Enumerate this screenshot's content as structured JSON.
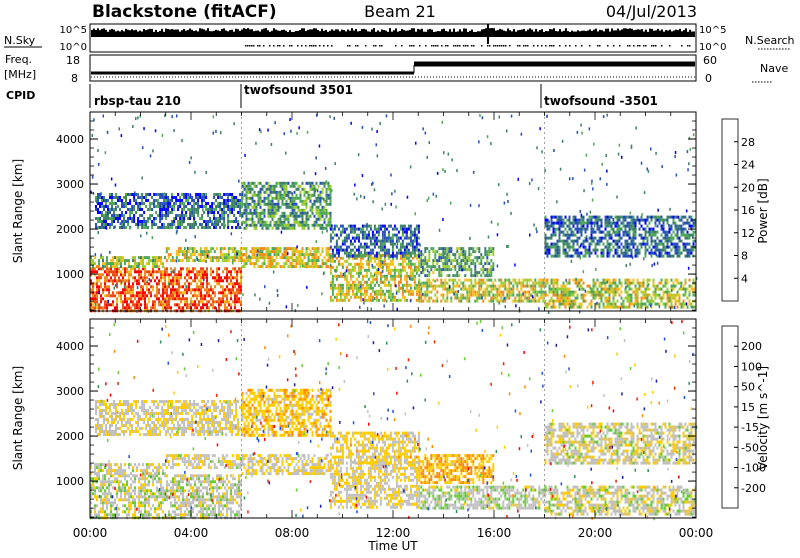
{
  "header": {
    "station": "Blackstone (fitACF)",
    "beam": "Beam 21",
    "date": "04/Jul/2013"
  },
  "summary_panel": {
    "left_label": "N.Sky",
    "right_label": "N.Search",
    "left_ticks": [
      "10^5",
      "10^0"
    ],
    "right_ticks": [
      "10^5",
      "10^0"
    ]
  },
  "freq_panel": {
    "left_label": "Freq.",
    "left_unit": "[MHz]",
    "right_label": "Nave",
    "left_ticks": [
      "18",
      "8"
    ],
    "right_ticks": [
      "60",
      "0"
    ]
  },
  "cpid": {
    "label": "CPID",
    "programs": [
      "rbsp-tau 210",
      "twofsound 3501",
      "twofsound -3501"
    ]
  },
  "chart_data": [
    {
      "type": "heatmap",
      "panel": "power",
      "xlabel": "",
      "ylabel": "Slant Range [km]",
      "xlim": [
        0,
        24
      ],
      "ylim": [
        180,
        4600
      ],
      "yticks": [
        1000,
        2000,
        3000,
        4000
      ],
      "colorbar": {
        "label": "Power [dB]",
        "range": [
          0,
          32
        ],
        "ticks": [
          "4",
          "8",
          "12",
          "16",
          "20",
          "24",
          "28"
        ],
        "colors": [
          "#0000ff",
          "#2850b8",
          "#3f7f6a",
          "#4fa85a",
          "#9acd32",
          "#f4c01e",
          "#f08a1c",
          "#ee4a14",
          "#ff0000"
        ]
      },
      "bands": [
        {
          "start": 0.0,
          "end": 6.0,
          "range": [
            180,
            1150
          ],
          "level": 26
        },
        {
          "start": 0.0,
          "end": 3.0,
          "range": [
            1150,
            1400
          ],
          "level": 16
        },
        {
          "start": 3.0,
          "end": 6.0,
          "range": [
            1300,
            1600
          ],
          "level": 17
        },
        {
          "start": 6.0,
          "end": 9.5,
          "range": [
            1150,
            1600
          ],
          "level": 19
        },
        {
          "start": 9.5,
          "end": 13.0,
          "range": [
            450,
            1450
          ],
          "level": 18
        },
        {
          "start": 13.0,
          "end": 18.0,
          "range": [
            400,
            900
          ],
          "level": 18
        },
        {
          "start": 13.0,
          "end": 16.0,
          "range": [
            1000,
            1600
          ],
          "level": 12
        },
        {
          "start": 18.0,
          "end": 24.0,
          "range": [
            300,
            900
          ],
          "level": 17
        },
        {
          "start": 6.0,
          "end": 9.5,
          "range": [
            2000,
            3050
          ],
          "level": 11
        },
        {
          "start": 0.2,
          "end": 6.0,
          "range": [
            2050,
            2800
          ],
          "level": 7
        },
        {
          "start": 18.0,
          "end": 24.0,
          "range": [
            1400,
            2300
          ],
          "level": 8
        },
        {
          "start": 9.5,
          "end": 13.0,
          "range": [
            1400,
            2100
          ],
          "level": 7
        }
      ]
    },
    {
      "type": "heatmap",
      "panel": "velocity",
      "xlabel": "Time UT",
      "ylabel": "Slant Range [km]",
      "xlim": [
        0,
        24
      ],
      "ylim": [
        180,
        4600
      ],
      "xticks": [
        "00:00",
        "04:00",
        "08:00",
        "12:00",
        "16:00",
        "20:00",
        "00:00"
      ],
      "yticks": [
        1000,
        2000,
        3000,
        4000
      ],
      "colorbar": {
        "label": "Velocity [m s^-1]",
        "range": [
          -250,
          250
        ],
        "ticks": [
          "200",
          "100",
          "50",
          "15",
          "-15",
          "-50",
          "-100",
          "-200"
        ],
        "colors": [
          "#1a1ab0",
          "#2050e0",
          "#2e8b57",
          "#66cc33",
          "#c0c0c0",
          "#ffcc00",
          "#ff8c00",
          "#ee2200",
          "#ff0000"
        ]
      },
      "bands": [
        {
          "start": 0.0,
          "end": 6.0,
          "range": [
            180,
            1150
          ],
          "level": 0
        },
        {
          "start": 0.0,
          "end": 3.0,
          "range": [
            1150,
            1400
          ],
          "level": 5
        },
        {
          "start": 3.0,
          "end": 6.0,
          "range": [
            1300,
            1600
          ],
          "level": 10
        },
        {
          "start": 6.0,
          "end": 9.5,
          "range": [
            1150,
            1600
          ],
          "level": 30
        },
        {
          "start": 9.5,
          "end": 13.0,
          "range": [
            450,
            1450
          ],
          "level": 20
        },
        {
          "start": 13.0,
          "end": 18.0,
          "range": [
            400,
            900
          ],
          "level": -10
        },
        {
          "start": 13.0,
          "end": 16.0,
          "range": [
            1000,
            1600
          ],
          "level": 80
        },
        {
          "start": 18.0,
          "end": 24.0,
          "range": [
            300,
            900
          ],
          "level": 5
        },
        {
          "start": 6.0,
          "end": 9.5,
          "range": [
            2000,
            3050
          ],
          "level": 60
        },
        {
          "start": 0.2,
          "end": 6.0,
          "range": [
            2050,
            2800
          ],
          "level": 20
        },
        {
          "start": 18.0,
          "end": 24.0,
          "range": [
            1400,
            2300
          ],
          "level": 10
        },
        {
          "start": 9.5,
          "end": 13.0,
          "range": [
            1400,
            2100
          ],
          "level": 40
        }
      ]
    }
  ]
}
